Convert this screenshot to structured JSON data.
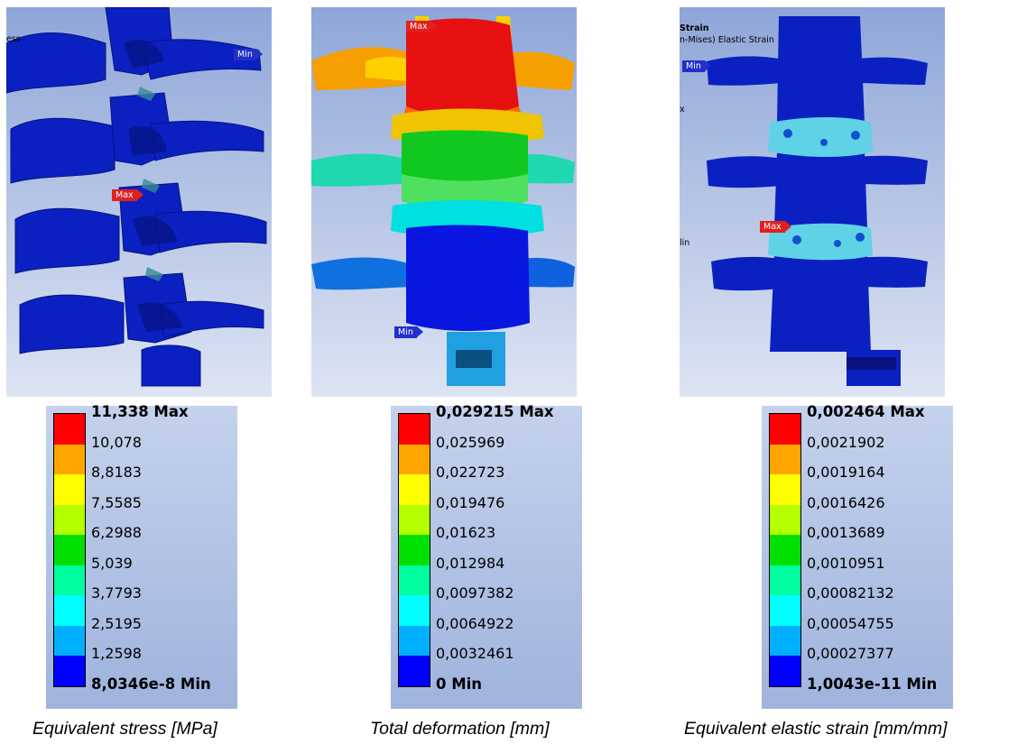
{
  "panels": [
    {
      "caption": "Equivalent stress [MPa]",
      "header_title": "",
      "header_sub": "ess",
      "header_mid": "",
      "header_low": "",
      "markers": {
        "max": "Max",
        "min": "Min"
      },
      "legend": {
        "labels": [
          "11,338 Max",
          "10,078",
          "8,8183",
          "7,5585",
          "6,2988",
          "5,039",
          "3,7793",
          "2,5195",
          "1,2598",
          "8,0346e-8 Min"
        ]
      }
    },
    {
      "caption": "Total deformation [mm]",
      "header_title": "",
      "header_sub": "",
      "header_mid": "",
      "header_low": "",
      "markers": {
        "max": "Max",
        "min": "Min"
      },
      "legend": {
        "labels": [
          "0,029215 Max",
          "0,025969",
          "0,022723",
          "0,019476",
          "0,01623",
          "0,012984",
          "0,0097382",
          "0,0064922",
          "0,0032461",
          "0 Min"
        ]
      }
    },
    {
      "caption": "Equivalent elastic strain [mm/mm]",
      "header_title": "Strain",
      "header_sub": "n-Mises) Elastic Strain",
      "header_mid": "x",
      "header_low": "lin",
      "markers": {
        "max": "Max",
        "min": "Min"
      },
      "legend": {
        "labels": [
          "0,002464 Max",
          "0,0021902",
          "0,0019164",
          "0,0016426",
          "0,0013689",
          "0,0010951",
          "0,00082132",
          "0,00054755",
          "0,00027377",
          "1,0043e-11 Min"
        ]
      }
    }
  ],
  "colors": {
    "scale": [
      "#ff0000",
      "#ffa500",
      "#ffff00",
      "#b4ff00",
      "#00e000",
      "#00ffa0",
      "#00ffff",
      "#00b0ff",
      "#0000ff"
    ],
    "render_bg_top": "#9bb0dc",
    "render_bg_bottom": "#e4e9f5",
    "spine_blue": "#0b20c0",
    "spine_blue_dark": "#061380"
  }
}
